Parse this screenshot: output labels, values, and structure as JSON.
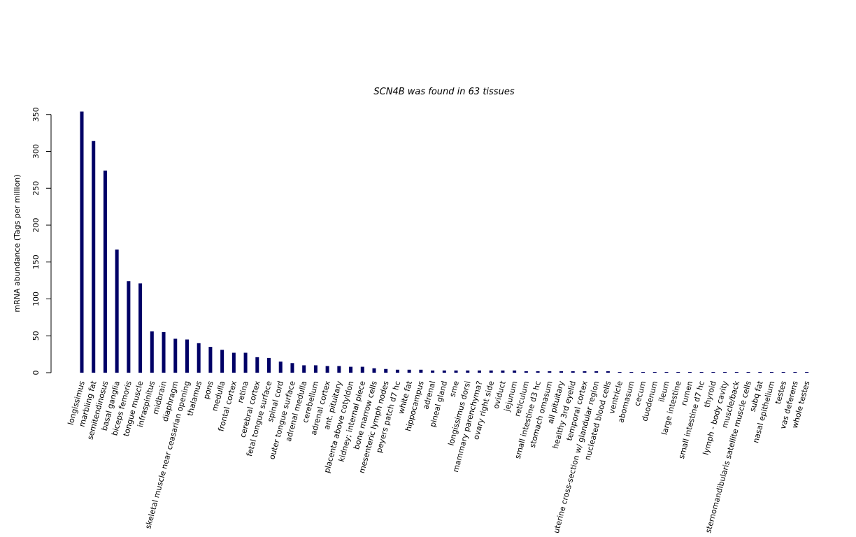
{
  "chart_data": {
    "type": "bar",
    "title": "SCN4B  was found in  63  tissues",
    "xlabel": "",
    "ylabel": "mRNA abundance (Tags per million)",
    "ylim": [
      0,
      360
    ],
    "yticks": [
      0,
      50,
      100,
      150,
      200,
      250,
      300,
      350
    ],
    "bar_color": "#000066",
    "grid": false,
    "categories": [
      "longissimus",
      "marbling fat",
      "semitendinosus",
      "basal ganglia",
      "biceps femoris",
      "tongue muscle",
      "infraspinitus",
      "midbrain",
      "diaphragm",
      "skeletal muscle near ceasarian opening",
      "thalamus",
      "pons",
      "medulla",
      "frontal cortex",
      "retina",
      "cerebral cortex",
      "fetal tongue surface",
      "spinal cord",
      "outer tongue surface",
      "adrenal medulla",
      "cerebellum",
      "adrenal cortex",
      "ant. pituitary",
      "placenta above cotyldon",
      "kidney; internal piece",
      "bone marrow cells",
      "mesenteric lymph nodes",
      "peyers patch d7 hc",
      "white fat",
      "hippocampus",
      "adrenal",
      "pineal gland",
      "sme",
      "longissimus dorsi",
      "mammary parenchyma?",
      "ovary right side",
      "oviduct",
      "jejunum",
      "reticulum",
      "small intestine d3 hc",
      "stomach omasum",
      "all pituitary",
      "healthy 3rd eyelid",
      "temporal cortex",
      "uterine cross-section w/ glandular region",
      "nucleated blood cells",
      "ventricle",
      "abomasum",
      "cecum",
      "duodenum",
      "ileum",
      "large intestine",
      "rumen",
      "small intestine d7 hc",
      "thyroid",
      "lymph - body cavity",
      "muscle/back",
      "sternomandibularis satellite muscle cells",
      "subq fat",
      "nasal epithelium",
      "testes",
      "vas deferens",
      "whole testes"
    ],
    "values": [
      354,
      314,
      274,
      167,
      124,
      121,
      56,
      55,
      46,
      45,
      40,
      35,
      31,
      27,
      27,
      21,
      20,
      15,
      13,
      10,
      10,
      9,
      9,
      8,
      8,
      6,
      5,
      4,
      4,
      4,
      3,
      3,
      3,
      3,
      3,
      3,
      3,
      3,
      2,
      2,
      2,
      2,
      2,
      2,
      2,
      2,
      1,
      1,
      1,
      1,
      1,
      1,
      1,
      1,
      1,
      1,
      1,
      1,
      1,
      1,
      1,
      1,
      1
    ]
  }
}
